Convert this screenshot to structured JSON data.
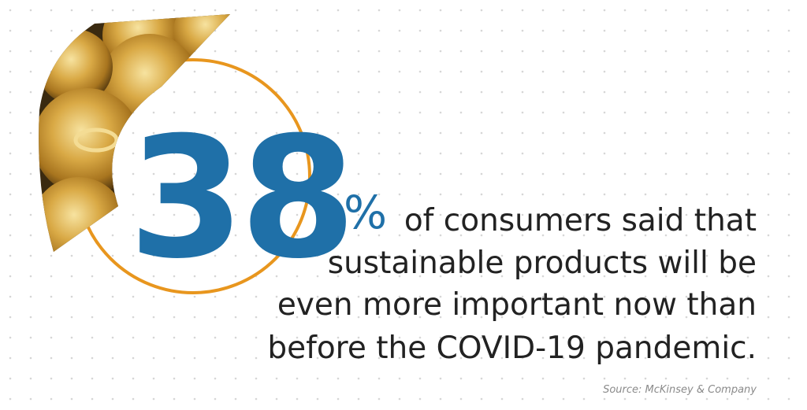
{
  "stat": {
    "number": "38",
    "unit": "%"
  },
  "statement": [
    "of consumers said that",
    "sustainable products will be",
    "even more important now than",
    "before the COVID-19 pandemic."
  ],
  "source": "Source: McKinsey & Company"
}
